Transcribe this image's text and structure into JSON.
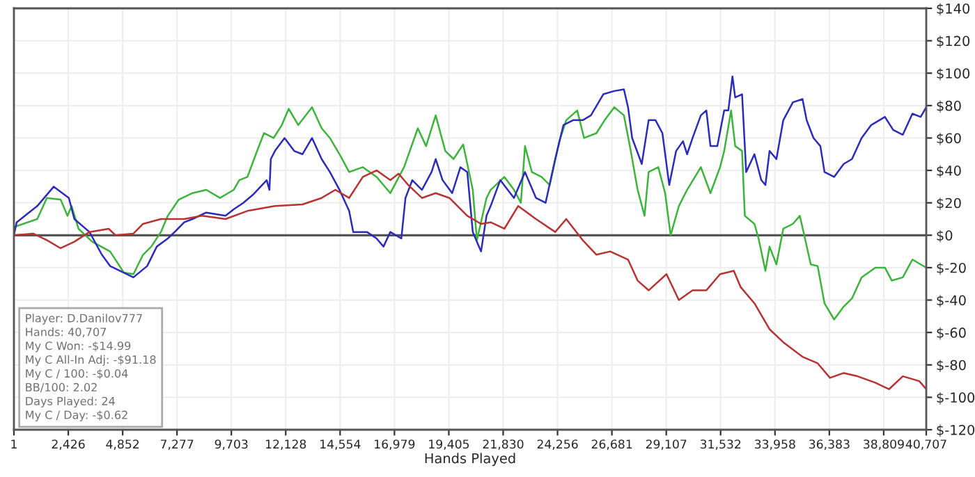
{
  "chart_data": {
    "type": "line",
    "xlabel": "Hands Played",
    "xlim": [
      1,
      40707
    ],
    "xticks": [
      {
        "value": 1,
        "label": "1"
      },
      {
        "value": 2426,
        "label": "2,426"
      },
      {
        "value": 4852,
        "label": "4,852"
      },
      {
        "value": 7277,
        "label": "7,277"
      },
      {
        "value": 9703,
        "label": "9,703"
      },
      {
        "value": 12128,
        "label": "12,128"
      },
      {
        "value": 14554,
        "label": "14,554"
      },
      {
        "value": 16979,
        "label": "16,979"
      },
      {
        "value": 19405,
        "label": "19,405"
      },
      {
        "value": 21830,
        "label": "21,830"
      },
      {
        "value": 24256,
        "label": "24,256"
      },
      {
        "value": 26681,
        "label": "26,681"
      },
      {
        "value": 29107,
        "label": "29,107"
      },
      {
        "value": 31532,
        "label": "31,532"
      },
      {
        "value": 33958,
        "label": "33,958"
      },
      {
        "value": 36383,
        "label": "36,383"
      },
      {
        "value": 38809,
        "label": "38,809"
      },
      {
        "value": 40707,
        "label": "40,707"
      }
    ],
    "ylim": [
      -120,
      140
    ],
    "yticks": [
      {
        "value": -120,
        "label": "$-120"
      },
      {
        "value": -100,
        "label": "$-100"
      },
      {
        "value": -80,
        "label": "$-80"
      },
      {
        "value": -60,
        "label": "$-60"
      },
      {
        "value": -40,
        "label": "$-40"
      },
      {
        "value": -20,
        "label": "$-20"
      },
      {
        "value": 0,
        "label": "$0"
      },
      {
        "value": 20,
        "label": "$20"
      },
      {
        "value": 40,
        "label": "$40"
      },
      {
        "value": 60,
        "label": "$60"
      },
      {
        "value": 80,
        "label": "$80"
      },
      {
        "value": 100,
        "label": "$100"
      },
      {
        "value": 120,
        "label": "$120"
      },
      {
        "value": 140,
        "label": "$140"
      }
    ],
    "grid": true,
    "legend": false,
    "marker": "none",
    "line_style": "solid",
    "ref_lines": [
      {
        "axis": "y",
        "value": 0,
        "color": "#555555"
      }
    ],
    "annotations": [
      "Player: D.Danilov777",
      "Hands: 40,707",
      "My C Won: -$14.99",
      "My C All-In Adj: -$91.18",
      "My C / 100: -$0.04",
      "BB/100: 2.02",
      "Days Played: 24",
      "My C / Day: -$0.62"
    ],
    "series": [
      {
        "color": "#3cb43c",
        "x": [
          1,
          1042,
          1471,
          2084,
          2391,
          2575,
          2881,
          3494,
          4291,
          4904,
          5333,
          5762,
          6130,
          6559,
          6866,
          7356,
          7969,
          8582,
          9195,
          9808,
          10053,
          10421,
          10850,
          11157,
          11586,
          11954,
          12260,
          12689,
          13302,
          13731,
          14099,
          14528,
          14957,
          15570,
          16183,
          16796,
          17409,
          18022,
          18390,
          18819,
          19248,
          19616,
          20045,
          20229,
          20474,
          20658,
          21087,
          21271,
          21884,
          22313,
          22620,
          22804,
          23110,
          23539,
          23907,
          24336,
          24643,
          25133,
          25440,
          25991,
          26359,
          26788,
          27217,
          27523,
          27830,
          28137,
          28321,
          28750,
          29056,
          29301,
          29669,
          30037,
          30650,
          31079,
          31508,
          31692,
          31999,
          32183,
          32489,
          32612,
          33041,
          33225,
          33531,
          33715,
          34022,
          34328,
          34757,
          35064,
          35248,
          35554,
          35861,
          36167,
          36596,
          37025,
          37393,
          37822,
          38435,
          38864,
          39171,
          39661,
          40090,
          40458,
          40707
        ],
        "values": [
          5,
          10,
          23,
          22,
          12,
          18,
          4,
          -4,
          -10,
          -23,
          -24,
          -12,
          -7,
          2,
          12,
          22,
          26,
          28,
          23,
          28,
          34,
          36,
          52,
          63,
          60,
          68,
          78,
          68,
          79,
          66,
          60,
          50,
          39,
          42,
          36,
          26,
          42,
          66,
          55,
          74,
          52,
          47,
          56,
          44,
          28,
          -3,
          23,
          28,
          36,
          28,
          20,
          55,
          39,
          36,
          31,
          58,
          71,
          77,
          60,
          63,
          71,
          79,
          74,
          52,
          28,
          12,
          39,
          42,
          26,
          0,
          18,
          28,
          42,
          26,
          42,
          52,
          77,
          55,
          52,
          12,
          7,
          -2,
          -22,
          -7,
          -18,
          4,
          7,
          12,
          1,
          -18,
          -19,
          -42,
          -52,
          -44,
          -39,
          -26,
          -20,
          -20,
          -28,
          -26,
          -15,
          -18,
          -20
        ]
      },
      {
        "color": "#2b2bbb",
        "x": [
          1,
          123,
          1042,
          1778,
          2452,
          2697,
          3372,
          3923,
          4291,
          5333,
          5946,
          6375,
          6866,
          7172,
          7601,
          7969,
          8582,
          9440,
          9808,
          10237,
          10666,
          11279,
          11402,
          11463,
          11647,
          12076,
          12505,
          12873,
          13302,
          13731,
          14099,
          14528,
          14957,
          15141,
          15754,
          16183,
          16490,
          16796,
          17287,
          17471,
          17777,
          18206,
          18635,
          18819,
          19126,
          19555,
          19923,
          20229,
          20474,
          20842,
          21087,
          21271,
          21700,
          22313,
          22804,
          23294,
          23723,
          24152,
          24520,
          24949,
          25378,
          25746,
          26298,
          26788,
          27217,
          27401,
          27585,
          28014,
          28321,
          28627,
          28934,
          29240,
          29547,
          29853,
          30037,
          30282,
          30650,
          30895,
          31079,
          31386,
          31692,
          31876,
          32060,
          32183,
          32489,
          32673,
          33041,
          33347,
          33531,
          33715,
          34022,
          34328,
          34757,
          35186,
          35370,
          35677,
          35983,
          36167,
          36596,
          37025,
          37393,
          37822,
          38251,
          38864,
          39232,
          39661,
          40090,
          40458,
          40707
        ],
        "values": [
          0,
          8,
          18,
          30,
          23,
          10,
          2,
          -12,
          -19,
          -26,
          -19,
          -7,
          -2,
          2,
          8,
          10,
          14,
          12,
          16,
          20,
          25,
          34,
          28,
          47,
          52,
          60,
          52,
          50,
          60,
          47,
          39,
          28,
          15,
          2,
          2,
          -2,
          -7,
          2,
          -2,
          23,
          34,
          28,
          39,
          47,
          34,
          26,
          42,
          39,
          2,
          -10,
          12,
          18,
          34,
          23,
          39,
          23,
          20,
          47,
          68,
          71,
          71,
          74,
          87,
          89,
          90,
          79,
          60,
          44,
          71,
          71,
          63,
          31,
          52,
          58,
          50,
          60,
          74,
          77,
          55,
          55,
          77,
          77,
          98,
          85,
          87,
          39,
          50,
          34,
          31,
          52,
          47,
          71,
          82,
          84,
          71,
          60,
          55,
          39,
          36,
          44,
          47,
          60,
          68,
          73,
          65,
          62,
          75,
          73,
          79
        ]
      },
      {
        "color": "#b83232",
        "x": [
          1,
          858,
          1471,
          2084,
          2697,
          3372,
          4230,
          4536,
          5333,
          5762,
          6559,
          7601,
          8398,
          9440,
          10421,
          11647,
          12873,
          13731,
          14344,
          14957,
          15570,
          16183,
          16796,
          17164,
          17593,
          18206,
          18819,
          19432,
          20229,
          20842,
          21271,
          21884,
          22497,
          23294,
          24152,
          24643,
          25378,
          25991,
          26604,
          27401,
          27830,
          28321,
          29118,
          29669,
          30282,
          30895,
          31508,
          32121,
          32427,
          33041,
          33715,
          34328,
          35186,
          35861,
          36412,
          37025,
          37638,
          38435,
          39048,
          39661,
          40397,
          40707
        ],
        "values": [
          0,
          1,
          -3,
          -8,
          -4,
          2,
          4,
          0,
          1,
          7,
          10,
          10,
          12,
          10,
          15,
          18,
          19,
          23,
          28,
          23,
          36,
          40,
          34,
          38,
          31,
          23,
          26,
          23,
          12,
          7,
          8,
          4,
          18,
          10,
          2,
          10,
          -3,
          -12,
          -10,
          -15,
          -28,
          -34,
          -24,
          -40,
          -34,
          -34,
          -24,
          -22,
          -32,
          -42,
          -58,
          -66,
          -75,
          -79,
          -88,
          -85,
          -87,
          -91,
          -95,
          -87,
          -90,
          -95
        ]
      }
    ]
  }
}
